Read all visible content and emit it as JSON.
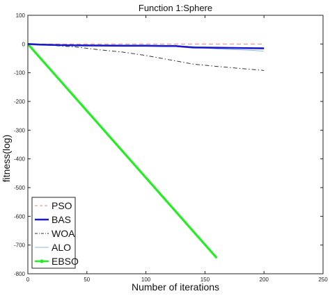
{
  "chart_data": {
    "type": "line",
    "title": "Function 1:Sphere",
    "xlabel": "Number of iterations",
    "ylabel": "fitness(log)",
    "xlim": [
      0,
      250
    ],
    "ylim": [
      -800,
      100
    ],
    "xticks": [
      0,
      50,
      100,
      150,
      200,
      250
    ],
    "yticks": [
      100,
      0,
      -100,
      -200,
      -300,
      -400,
      -500,
      -600,
      -700,
      -800
    ],
    "grid": false,
    "legend_position": "bottom-left",
    "series": [
      {
        "name": "PSO",
        "color": "#e88080",
        "style": "dashed",
        "x": [
          0,
          25,
          50,
          75,
          100,
          125,
          150,
          175,
          200
        ],
        "y": [
          0,
          0,
          0,
          0,
          0,
          0,
          0,
          0,
          0
        ]
      },
      {
        "name": "BAS",
        "color": "#1a1acc",
        "style": "solid-thick",
        "x": [
          0,
          10,
          30,
          50,
          80,
          100,
          115,
          125,
          140,
          160,
          180,
          200
        ],
        "y": [
          0,
          -2,
          -4,
          -5,
          -6,
          -6,
          -7,
          -7,
          -12,
          -13,
          -14,
          -15
        ]
      },
      {
        "name": "WOA",
        "color": "#333333",
        "style": "dashdot",
        "x": [
          0,
          20,
          40,
          60,
          80,
          100,
          120,
          140,
          160,
          180,
          200
        ],
        "y": [
          0,
          -5,
          -10,
          -20,
          -28,
          -40,
          -55,
          -70,
          -78,
          -85,
          -92
        ]
      },
      {
        "name": "ALO",
        "color": "#88bbdd",
        "style": "solid-thin",
        "x": [
          0,
          20,
          40,
          60,
          80,
          100,
          120,
          140,
          150,
          160,
          170,
          180,
          190,
          200
        ],
        "y": [
          0,
          -2,
          -4,
          -5,
          -6,
          -7,
          -8,
          -9,
          -14,
          -17,
          -19,
          -20,
          -22,
          -25
        ]
      },
      {
        "name": "EBSO",
        "color": "#22ee22",
        "style": "solid-marker",
        "x": [
          0,
          160
        ],
        "y": [
          0,
          -745
        ]
      }
    ]
  }
}
